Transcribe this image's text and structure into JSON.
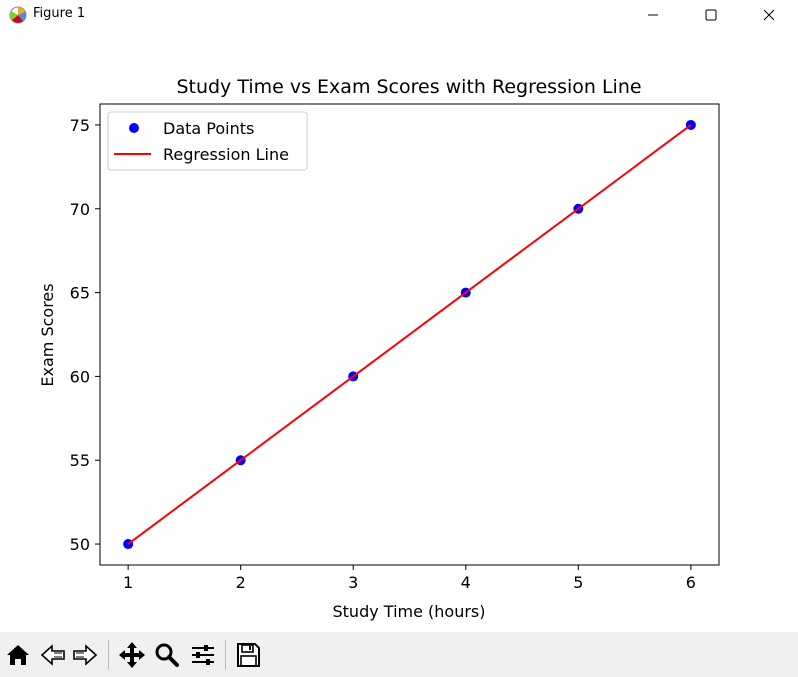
{
  "window": {
    "title": "Figure 1"
  },
  "toolbar": {
    "buttons": [
      "home-icon",
      "back-arrow-icon",
      "forward-arrow-icon",
      "pan-icon",
      "zoom-icon",
      "configure-subplots-icon",
      "save-icon"
    ]
  },
  "chart_data": {
    "type": "scatter",
    "title": "Study Time vs Exam Scores with Regression Line",
    "xlabel": "Study Time (hours)",
    "ylabel": "Exam Scores",
    "xlim": [
      0.75,
      6.25
    ],
    "ylim": [
      48.75,
      76.25
    ],
    "xticks": [
      1,
      2,
      3,
      4,
      5,
      6
    ],
    "yticks": [
      50,
      55,
      60,
      65,
      70,
      75
    ],
    "grid": false,
    "legend_position": "upper-left",
    "series": [
      {
        "name": "Data Points",
        "kind": "scatter",
        "color": "#0000ff",
        "x": [
          1,
          2,
          3,
          4,
          5,
          6
        ],
        "y": [
          50,
          55,
          60,
          65,
          70,
          75
        ]
      },
      {
        "name": "Regression Line",
        "kind": "line",
        "color": "#ff0000",
        "x": [
          1,
          2,
          3,
          4,
          5,
          6
        ],
        "y": [
          50,
          55,
          60,
          65,
          70,
          75
        ]
      }
    ]
  }
}
